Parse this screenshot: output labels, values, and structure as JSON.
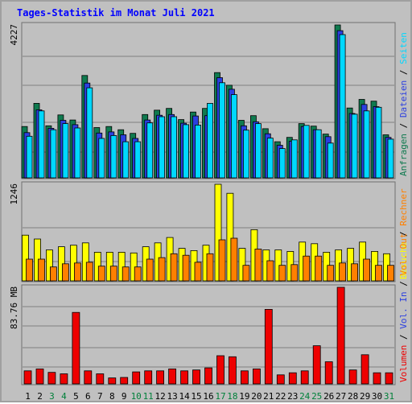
{
  "title": "Tages-Statistik im Monat Juli 2021",
  "colors": {
    "frame_bg": "#c0c0c0",
    "panel_bg": "#c0c0c0",
    "title": "#0000ff",
    "anfragen": "#0f7a4f",
    "dateien": "#2b3fe0",
    "seiten": "#00d8ff",
    "besuche": "#ffff00",
    "rechner": "#ff8000",
    "vol_in": "#2b3fe0",
    "vol_out": "#ff8000",
    "volumen": "#ee0000",
    "weekday_label": "#000000",
    "weekend_label": "#00803a",
    "grid": "#808080"
  },
  "chart_data": [
    {
      "type": "bar",
      "panel": "top",
      "y_max_label": "4227",
      "ylim": [
        0,
        4227
      ],
      "grid": true,
      "right_legend": [
        {
          "text": "Anfragen",
          "color": "#0f7a4f"
        },
        {
          "text": " / ",
          "color": "#000000"
        },
        {
          "text": "Dateien",
          "color": "#2b3fe0"
        },
        {
          "text": " / ",
          "color": "#000000"
        },
        {
          "text": "Seiten",
          "color": "#00d8ff"
        }
      ],
      "series": [
        {
          "name": "Anfragen",
          "color": "#0f7a4f",
          "values": [
            1420,
            2060,
            1440,
            1740,
            1600,
            2830,
            1390,
            1420,
            1330,
            1230,
            1750,
            1870,
            1920,
            1610,
            1820,
            1920,
            2910,
            2560,
            1590,
            1720,
            1360,
            1000,
            1120,
            1500,
            1430,
            1210,
            4227,
            1930,
            2170,
            2120,
            1190
          ]
        },
        {
          "name": "Dateien",
          "color": "#2b3fe0",
          "values": [
            1250,
            1880,
            1370,
            1590,
            1470,
            2620,
            1240,
            1270,
            1190,
            1090,
            1600,
            1730,
            1750,
            1510,
            1710,
            1720,
            2770,
            2450,
            1440,
            1550,
            1220,
            900,
            1010,
            1420,
            1330,
            1140,
            4070,
            1780,
            2030,
            1970,
            1120
          ]
        },
        {
          "name": "Seiten",
          "color": "#00d8ff",
          "values": [
            1150,
            1850,
            1330,
            1500,
            1380,
            2490,
            1090,
            1170,
            1000,
            1000,
            1520,
            1690,
            1690,
            1470,
            1460,
            2060,
            2630,
            2300,
            1320,
            1500,
            1100,
            810,
            1050,
            1450,
            1330,
            960,
            3960,
            1760,
            1850,
            1950,
            1070
          ]
        }
      ]
    },
    {
      "type": "bar",
      "panel": "middle",
      "y_max_label": "1246",
      "ylim": [
        0,
        1246
      ],
      "grid": true,
      "right_legend": [
        {
          "text": "Besuche",
          "color": "#ffff00"
        },
        {
          "text": " / ",
          "color": "#000000"
        },
        {
          "text": "Rechner",
          "color": "#ff8000"
        }
      ],
      "series": [
        {
          "name": "Besuche",
          "color": "#ffff00",
          "values": [
            590,
            540,
            400,
            440,
            460,
            490,
            370,
            370,
            370,
            360,
            440,
            490,
            560,
            420,
            390,
            460,
            1246,
            1130,
            420,
            660,
            400,
            400,
            380,
            500,
            480,
            370,
            400,
            420,
            500,
            380,
            350
          ]
        },
        {
          "name": "Rechner",
          "color": "#ff8000",
          "values": [
            280,
            280,
            180,
            220,
            230,
            240,
            190,
            190,
            180,
            180,
            280,
            300,
            350,
            330,
            240,
            350,
            530,
            550,
            200,
            410,
            260,
            200,
            210,
            320,
            320,
            200,
            230,
            220,
            280,
            200,
            200
          ]
        }
      ]
    },
    {
      "type": "bar",
      "panel": "bottom",
      "y_max_label": "83.76 MB",
      "y_unit": "MB",
      "ylim": [
        0,
        83.76
      ],
      "grid": true,
      "right_legend": [
        {
          "text": "Volumen",
          "color": "#ee0000"
        },
        {
          "text": " / ",
          "color": "#000000"
        },
        {
          "text": "Vol. In",
          "color": "#2b3fe0"
        },
        {
          "text": " / ",
          "color": "#000000"
        },
        {
          "text": "Vol. Out",
          "color": "#ff8000"
        }
      ],
      "series": [
        {
          "name": "Volumen",
          "color": "#ee0000",
          "values": [
            11.3,
            13.0,
            10.0,
            8.7,
            62.0,
            11.3,
            8.7,
            5.2,
            5.6,
            10.4,
            11.3,
            11.3,
            13.0,
            11.3,
            12.1,
            13.9,
            24.4,
            23.5,
            11.3,
            13.0,
            64.6,
            7.8,
            9.6,
            11.3,
            33.1,
            19.2,
            83.76,
            12.1,
            25.3,
            9.6,
            9.6
          ]
        }
      ]
    }
  ],
  "days": [
    "1",
    "2",
    "3",
    "4",
    "5",
    "6",
    "7",
    "8",
    "9",
    "10",
    "11",
    "12",
    "13",
    "14",
    "15",
    "16",
    "17",
    "18",
    "19",
    "20",
    "21",
    "22",
    "23",
    "24",
    "25",
    "26",
    "27",
    "28",
    "29",
    "30",
    "31"
  ],
  "weekend_days": [
    "3",
    "4",
    "10",
    "11",
    "17",
    "18",
    "24",
    "25",
    "31"
  ]
}
